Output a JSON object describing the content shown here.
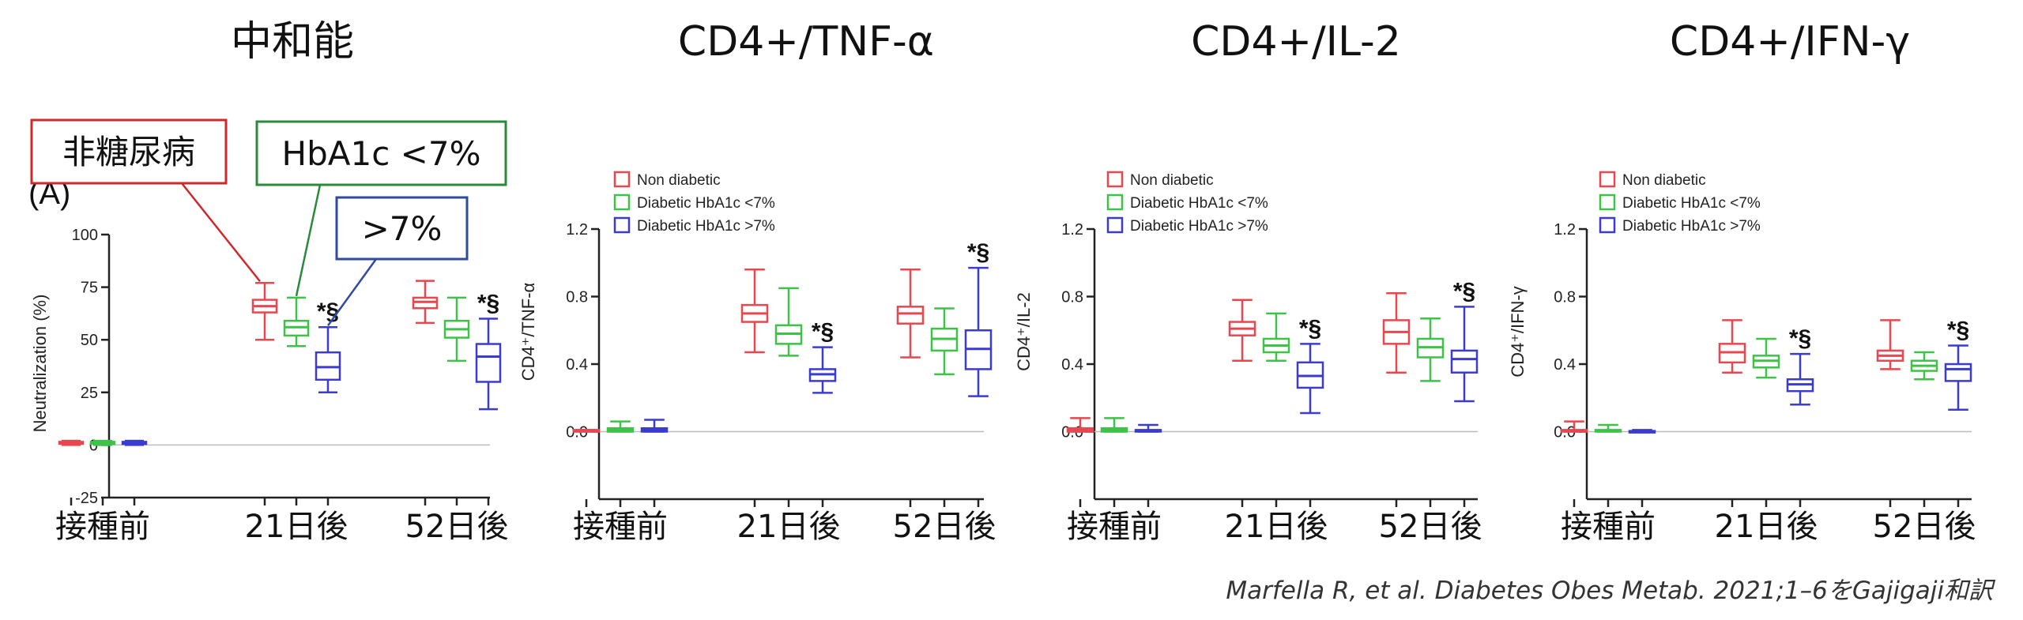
{
  "chart_data": [
    {
      "type": "boxplot",
      "title": "中和能",
      "panel_label": "(A)",
      "ylabel": "Neutralization (%)",
      "ylim": [
        -25,
        100
      ],
      "yticks": [
        -25,
        0,
        25,
        50,
        75,
        100
      ],
      "ytick_labels": [
        "-25",
        "0",
        "25",
        "50",
        "75",
        "100"
      ],
      "categories": [
        "接種前",
        "21日後",
        "52日後"
      ],
      "series": [
        {
          "name": "Non diabetic",
          "color": "#e8474f",
          "boxes": [
            [
              0,
              0.5,
              1,
              1.5,
              2
            ],
            [
              50,
              63,
              66,
              69,
              77
            ],
            [
              58,
              65,
              68,
              70,
              78
            ]
          ]
        },
        {
          "name": "Diabetic HbA1c <7%",
          "color": "#3fc248",
          "boxes": [
            [
              0,
              0.5,
              1,
              1.5,
              2
            ],
            [
              47,
              52,
              56,
              59,
              70
            ],
            [
              40,
              51,
              55,
              59,
              70
            ]
          ]
        },
        {
          "name": "Diabetic HbA1c >7%",
          "color": "#3b3bd0",
          "boxes": [
            [
              0,
              0.5,
              1,
              1.5,
              2
            ],
            [
              25,
              31,
              37,
              44,
              56
            ],
            [
              17,
              30,
              42,
              48,
              60
            ]
          ]
        }
      ],
      "significance": [
        {
          "category": "21日後",
          "series": 2,
          "text": "*§"
        },
        {
          "category": "52日後",
          "series": 2,
          "text": "*§"
        }
      ],
      "callouts": [
        {
          "text": "非糖尿病",
          "border": "#cc2a2a",
          "target_category": "21日後",
          "target_series": 0
        },
        {
          "text": "HbA1c <7%",
          "border": "#2a8a3a",
          "target_category": "21日後",
          "target_series": 1
        },
        {
          "text": ">7%",
          "border": "#2f4b9e",
          "target_category": "21日後",
          "target_series": 2
        }
      ]
    },
    {
      "type": "boxplot",
      "title": "CD4+/TNF-α",
      "ylabel": "CD4⁺/TNF-α",
      "ylim": [
        -0.4,
        1.2
      ],
      "yticks": [
        0.0,
        0.4,
        0.8,
        1.2
      ],
      "ytick_labels": [
        "0.0",
        "0.4",
        "0.8",
        "1.2"
      ],
      "categories": [
        "接種前",
        "21日後",
        "52日後"
      ],
      "legend": [
        "Non diabetic",
        "Diabetic HbA1c <7%",
        "Diabetic HbA1c >7%"
      ],
      "series": [
        {
          "name": "Non diabetic",
          "color": "#e8474f",
          "boxes": [
            [
              0,
              0,
              0.005,
              0.01,
              0.01
            ],
            [
              0.47,
              0.65,
              0.7,
              0.75,
              0.96
            ],
            [
              0.44,
              0.64,
              0.7,
              0.74,
              0.96
            ]
          ]
        },
        {
          "name": "Diabetic HbA1c <7%",
          "color": "#3fc248",
          "boxes": [
            [
              0,
              0,
              0.01,
              0.02,
              0.06
            ],
            [
              0.45,
              0.52,
              0.58,
              0.63,
              0.85
            ],
            [
              0.34,
              0.48,
              0.55,
              0.61,
              0.73
            ]
          ]
        },
        {
          "name": "Diabetic HbA1c >7%",
          "color": "#3b3bd0",
          "boxes": [
            [
              0,
              0,
              0.01,
              0.02,
              0.07
            ],
            [
              0.23,
              0.3,
              0.34,
              0.37,
              0.5
            ],
            [
              0.21,
              0.37,
              0.49,
              0.6,
              0.97
            ]
          ]
        }
      ],
      "significance": [
        {
          "category": "21日後",
          "series": 2,
          "text": "*§"
        },
        {
          "category": "52日後",
          "series": 2,
          "text": "*§"
        }
      ]
    },
    {
      "type": "boxplot",
      "title": "CD4+/IL-2",
      "ylabel": "CD4⁺/IL-2",
      "ylim": [
        -0.4,
        1.2
      ],
      "yticks": [
        0.0,
        0.4,
        0.8,
        1.2
      ],
      "ytick_labels": [
        "0.0",
        "0.4",
        "0.8",
        "1.2"
      ],
      "categories": [
        "接種前",
        "21日後",
        "52日後"
      ],
      "legend": [
        "Non diabetic",
        "Diabetic HbA1c <7%",
        "Diabetic HbA1c >7%"
      ],
      "series": [
        {
          "name": "Non diabetic",
          "color": "#e8474f",
          "boxes": [
            [
              0,
              0,
              0.01,
              0.02,
              0.08
            ],
            [
              0.42,
              0.57,
              0.61,
              0.65,
              0.78
            ],
            [
              0.35,
              0.52,
              0.59,
              0.66,
              0.82
            ]
          ]
        },
        {
          "name": "Diabetic HbA1c <7%",
          "color": "#3fc248",
          "boxes": [
            [
              0,
              0,
              0.01,
              0.02,
              0.08
            ],
            [
              0.42,
              0.47,
              0.51,
              0.55,
              0.7
            ],
            [
              0.3,
              0.44,
              0.5,
              0.55,
              0.67
            ]
          ]
        },
        {
          "name": "Diabetic HbA1c >7%",
          "color": "#3b3bd0",
          "boxes": [
            [
              0,
              0,
              0.005,
              0.01,
              0.04
            ],
            [
              0.11,
              0.26,
              0.33,
              0.41,
              0.52
            ],
            [
              0.18,
              0.35,
              0.43,
              0.48,
              0.74
            ]
          ]
        }
      ],
      "significance": [
        {
          "category": "21日後",
          "series": 2,
          "text": "*§"
        },
        {
          "category": "52日後",
          "series": 2,
          "text": "*§"
        }
      ]
    },
    {
      "type": "boxplot",
      "title": "CD4+/IFN-γ",
      "ylabel": "CD4⁺/IFN-γ",
      "ylim": [
        -0.4,
        1.2
      ],
      "yticks": [
        0.0,
        0.4,
        0.8,
        1.2
      ],
      "ytick_labels": [
        "0.0",
        "0.4",
        "0.8",
        "1.2"
      ],
      "categories": [
        "接種前",
        "21日後",
        "52日後"
      ],
      "legend": [
        "Non diabetic",
        "Diabetic HbA1c <7%",
        "Diabetic HbA1c >7%"
      ],
      "series": [
        {
          "name": "Non diabetic",
          "color": "#e8474f",
          "boxes": [
            [
              0,
              0,
              0.005,
              0.01,
              0.06
            ],
            [
              0.35,
              0.41,
              0.47,
              0.52,
              0.66
            ],
            [
              0.37,
              0.42,
              0.45,
              0.48,
              0.66
            ]
          ]
        },
        {
          "name": "Diabetic HbA1c <7%",
          "color": "#3fc248",
          "boxes": [
            [
              0,
              0,
              0.005,
              0.01,
              0.04
            ],
            [
              0.32,
              0.38,
              0.42,
              0.45,
              0.55
            ],
            [
              0.31,
              0.36,
              0.39,
              0.42,
              0.47
            ]
          ]
        },
        {
          "name": "Diabetic HbA1c >7%",
          "color": "#3b3bd0",
          "boxes": [
            [
              0,
              0,
              0.002,
              0.004,
              0.01
            ],
            [
              0.16,
              0.24,
              0.28,
              0.31,
              0.46
            ],
            [
              0.13,
              0.3,
              0.37,
              0.4,
              0.51
            ]
          ]
        }
      ],
      "significance": [
        {
          "category": "21日後",
          "series": 2,
          "text": "*§"
        },
        {
          "category": "52日後",
          "series": 2,
          "text": "*§"
        }
      ]
    }
  ],
  "credit": "Marfella R, et al. Diabetes Obes Metab. 2021;1–6をGajigaji和訳"
}
